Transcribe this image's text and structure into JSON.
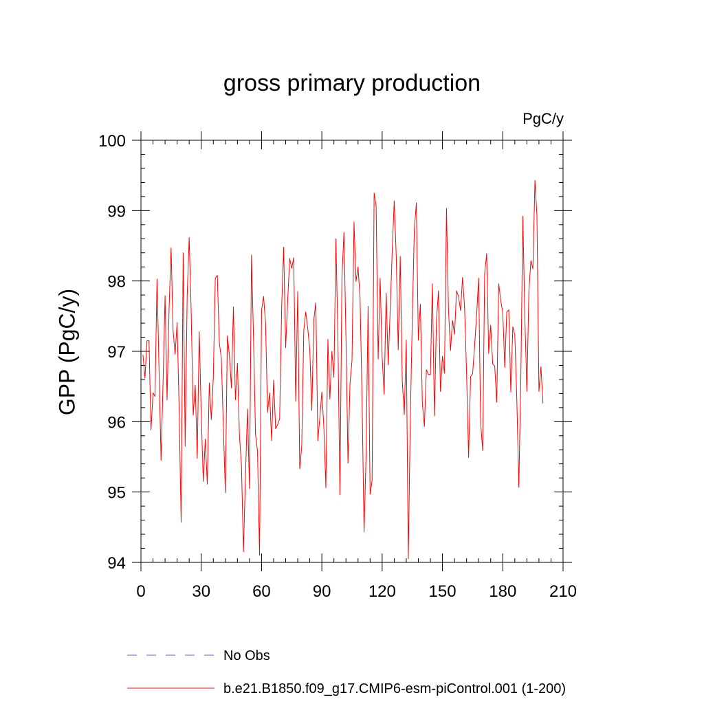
{
  "chart_data": {
    "type": "line",
    "title": "gross primary production",
    "units": "PgC/y",
    "xlabel": "",
    "ylabel": "GPP  (PgC/y)",
    "xlim": [
      0,
      210
    ],
    "ylim": [
      94,
      100
    ],
    "xticks": [
      0,
      30,
      60,
      90,
      120,
      150,
      180,
      210
    ],
    "xtick_labels": [
      "0",
      "30",
      "60",
      "90",
      "120",
      "150",
      "180",
      "210"
    ],
    "yticks": [
      94,
      95,
      96,
      97,
      98,
      99,
      100
    ],
    "ytick_labels": [
      "94",
      "95",
      "96",
      "97",
      "98",
      "99",
      "100"
    ],
    "grid": false,
    "legend_position": "bottom",
    "series": [
      {
        "name": "b.e21.B1850.f09_g17.CMIP6-esm-piControl.001 (1-200)",
        "color": "#ff0000",
        "style": "solid",
        "x_start": 1,
        "values": [
          96.95,
          96.62,
          97.15,
          97.15,
          95.88,
          96.41,
          96.36,
          98.03,
          96.75,
          95.45,
          96.55,
          97.79,
          96.31,
          97.6,
          98.47,
          97.29,
          96.96,
          97.41,
          96.18,
          94.57,
          98.4,
          95.65,
          97.79,
          98.62,
          97.55,
          96.09,
          96.52,
          95.48,
          97.28,
          96.11,
          95.15,
          95.75,
          95.11,
          96.55,
          96.03,
          96.62,
          98.04,
          98.08,
          97.12,
          96.9,
          95.92,
          94.99,
          97.22,
          96.95,
          96.48,
          97.63,
          96.31,
          96.83,
          95.8,
          95.39,
          94.15,
          95.22,
          96.18,
          95.05,
          98.37,
          97.2,
          95.82,
          95.58,
          94.1,
          97.58,
          97.78,
          97.4,
          96.13,
          96.41,
          95.73,
          96.59,
          95.9,
          95.96,
          96.04,
          97.62,
          98.48,
          97.05,
          97.72,
          98.32,
          98.18,
          98.33,
          96.29,
          97.85,
          95.33,
          95.65,
          97.29,
          97.56,
          97.32,
          97.02,
          96.16,
          97.45,
          97.69,
          95.73,
          96.06,
          96.42,
          95.92,
          95.06,
          97.17,
          96.32,
          97.0,
          96.63,
          98.6,
          97.17,
          94.96,
          98.06,
          98.69,
          97.19,
          95.41,
          96.54,
          96.87,
          98.84,
          97.99,
          98.2,
          97.76,
          96.34,
          94.43,
          95.5,
          97.64,
          94.97,
          95.16,
          99.25,
          99.07,
          96.89,
          98.04,
          96.92,
          96.39,
          97.83,
          96.81,
          97.59,
          98.42,
          99.14,
          98.36,
          97.02,
          98.35,
          96.58,
          96.1,
          97.16,
          94.05,
          96.02,
          97.46,
          98.73,
          99.11,
          97.16,
          97.67,
          96.26,
          95.93,
          96.74,
          96.67,
          96.67,
          97.96,
          96.08,
          97.43,
          97.86,
          96.43,
          96.93,
          96.69,
          99.03,
          97.6,
          97.01,
          97.44,
          97.24,
          97.86,
          97.78,
          97.58,
          98.05,
          97.63,
          96.69,
          95.49,
          96.64,
          96.68,
          97.08,
          97.52,
          98.04,
          95.98,
          95.59,
          98.11,
          98.39,
          96.97,
          97.37,
          96.82,
          96.79,
          96.28,
          97.96,
          97.72,
          97.55,
          96.77,
          97.56,
          97.59,
          96.42,
          97.35,
          97.23,
          96.31,
          95.07,
          96.64,
          98.92,
          97.46,
          96.43,
          97.86,
          98.29,
          98.17,
          99.43,
          98.93,
          96.43,
          96.78,
          96.26
        ]
      }
    ],
    "legend": [
      {
        "label": "No Obs",
        "color": "#5555cc",
        "style": "dashed"
      },
      {
        "label": "b.e21.B1850.f09_g17.CMIP6-esm-piControl.001 (1-200)",
        "color": "#ff0000",
        "style": "solid"
      }
    ]
  }
}
